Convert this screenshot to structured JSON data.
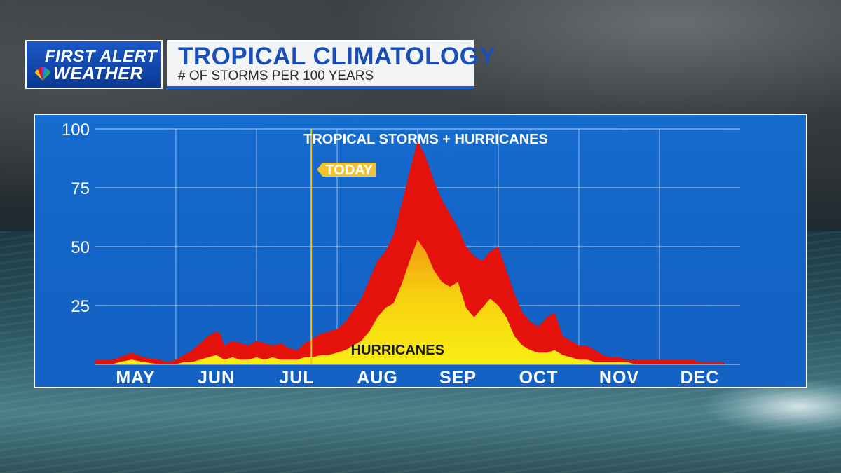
{
  "header": {
    "logo_line1": "FIRST ALERT",
    "logo_line2": "WEATHER",
    "title": "TROPICAL CLIMATOLOGY",
    "subtitle": "# OF STORMS PER 100 YEARS"
  },
  "colors": {
    "panel_blue": "#1466d2",
    "storm_red": "#e4120a",
    "hurricane_yellow": "#f7ea10",
    "today_marker": "#f2c230",
    "title_blue": "#1a4fb8"
  },
  "icons": {
    "logo": "peacock-icon"
  },
  "chart_data": {
    "type": "area",
    "title": "TROPICAL CLIMATOLOGY",
    "subtitle": "# OF STORMS PER 100 YEARS",
    "ylim": [
      0,
      100
    ],
    "yticks": [
      25,
      50,
      75,
      100
    ],
    "xlim": [
      0,
      8
    ],
    "x_tick_positions": [
      0.5,
      1.5,
      2.5,
      3.5,
      4.5,
      5.5,
      6.5,
      7.5
    ],
    "x_tick_labels": [
      "MAY",
      "JUN",
      "JUL",
      "AUG",
      "SEP",
      "OCT",
      "NOV",
      "DEC"
    ],
    "grid": true,
    "series": [
      {
        "name": "TROPICAL STORMS + HURRICANES",
        "x": [
          0,
          0.1,
          0.2,
          0.3,
          0.45,
          0.6,
          0.8,
          0.9,
          1.0,
          1.1,
          1.2,
          1.3,
          1.4,
          1.5,
          1.55,
          1.6,
          1.7,
          1.8,
          1.9,
          2.0,
          2.1,
          2.2,
          2.3,
          2.4,
          2.5,
          2.6,
          2.7,
          2.8,
          2.9,
          3.0,
          3.1,
          3.2,
          3.3,
          3.4,
          3.5,
          3.6,
          3.7,
          3.8,
          3.9,
          4.0,
          4.1,
          4.2,
          4.3,
          4.4,
          4.5,
          4.6,
          4.7,
          4.8,
          4.9,
          5.0,
          5.1,
          5.2,
          5.3,
          5.4,
          5.5,
          5.6,
          5.7,
          5.8,
          5.9,
          6.0,
          6.1,
          6.2,
          6.3,
          6.4,
          6.5,
          6.6,
          6.7,
          6.8,
          6.9,
          7.0,
          7.1,
          7.2,
          7.3,
          7.4,
          7.5,
          7.6,
          7.7,
          7.8
        ],
        "values": [
          2,
          2,
          2,
          3,
          5,
          3,
          2,
          1,
          2,
          4,
          6,
          9,
          12,
          14,
          13,
          8,
          10,
          9,
          8,
          10,
          9,
          8,
          9,
          7,
          6,
          9,
          11,
          13,
          14,
          15,
          18,
          23,
          28,
          36,
          44,
          48,
          55,
          68,
          82,
          95,
          88,
          78,
          70,
          64,
          58,
          50,
          46,
          44,
          48,
          50,
          40,
          30,
          22,
          18,
          16,
          20,
          22,
          12,
          10,
          8,
          8,
          6,
          4,
          3,
          3,
          2,
          2,
          2,
          2,
          2,
          2,
          2,
          2,
          2,
          1,
          1,
          1,
          1
        ]
      },
      {
        "name": "HURRICANES",
        "x": [
          0,
          0.1,
          0.2,
          0.3,
          0.45,
          0.6,
          0.8,
          0.9,
          1.0,
          1.1,
          1.2,
          1.3,
          1.4,
          1.5,
          1.55,
          1.6,
          1.7,
          1.8,
          1.9,
          2.0,
          2.1,
          2.2,
          2.3,
          2.4,
          2.5,
          2.6,
          2.7,
          2.8,
          2.9,
          3.0,
          3.1,
          3.2,
          3.3,
          3.4,
          3.5,
          3.6,
          3.7,
          3.8,
          3.9,
          4.0,
          4.1,
          4.2,
          4.3,
          4.4,
          4.5,
          4.6,
          4.7,
          4.8,
          4.9,
          5.0,
          5.1,
          5.2,
          5.3,
          5.4,
          5.5,
          5.6,
          5.7,
          5.8,
          5.9,
          6.0,
          6.1,
          6.2,
          6.3,
          6.4,
          6.5,
          6.6,
          6.7,
          6.8,
          6.9,
          7.0,
          7.1,
          7.2,
          7.3,
          7.4,
          7.5,
          7.6,
          7.7,
          7.8
        ],
        "values": [
          0,
          0,
          0,
          1,
          2,
          1,
          0,
          0,
          0,
          1,
          1,
          2,
          3,
          4,
          3,
          2,
          3,
          2,
          2,
          3,
          2,
          3,
          2,
          2,
          2,
          3,
          3,
          4,
          4,
          5,
          6,
          8,
          10,
          14,
          20,
          24,
          26,
          34,
          44,
          53,
          48,
          40,
          35,
          33,
          35,
          24,
          20,
          24,
          28,
          25,
          20,
          12,
          8,
          6,
          5,
          5,
          6,
          4,
          3,
          2,
          2,
          1,
          1,
          1,
          1,
          1,
          0,
          0,
          0,
          0,
          0,
          0,
          0,
          0,
          0,
          0,
          0,
          0
        ]
      }
    ],
    "annotations": {
      "series_label_total": "TROPICAL STORMS + HURRICANES",
      "series_label_hurricanes": "HURRICANES",
      "today_label": "TODAY",
      "today_x": 2.68
    }
  }
}
